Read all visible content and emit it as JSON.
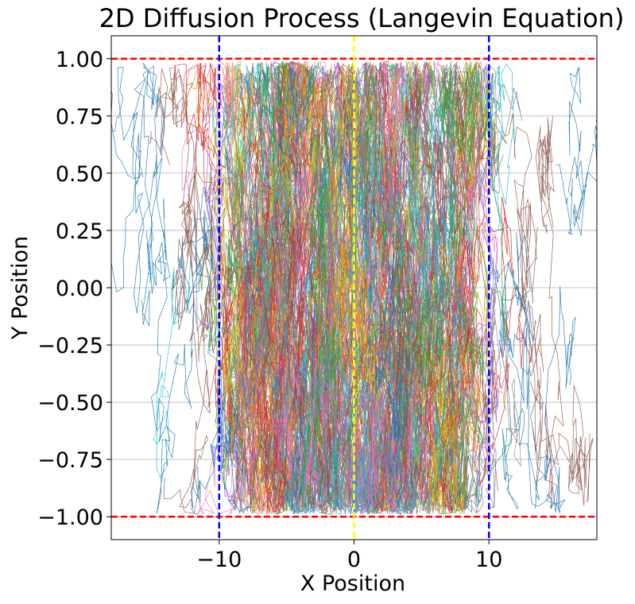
{
  "chart_data": {
    "type": "line",
    "title": "2D Diffusion Process (Langevin Equation)",
    "xlabel": "X Position",
    "ylabel": "Y Position",
    "xlim": [
      -18,
      18
    ],
    "ylim": [
      -1.1,
      1.1
    ],
    "x_ticks": [
      {
        "value": -10,
        "label": "−10"
      },
      {
        "value": 0,
        "label": "0"
      },
      {
        "value": 10,
        "label": "10"
      }
    ],
    "y_ticks": [
      {
        "value": 1.0,
        "label": "1.00"
      },
      {
        "value": 0.75,
        "label": "0.75"
      },
      {
        "value": 0.5,
        "label": "0.50"
      },
      {
        "value": 0.25,
        "label": "0.25"
      },
      {
        "value": 0.0,
        "label": "0.00"
      },
      {
        "value": -0.25,
        "label": "−0.25"
      },
      {
        "value": -0.5,
        "label": "−0.50"
      },
      {
        "value": -0.75,
        "label": "−0.75"
      },
      {
        "value": -1.0,
        "label": "−1.00"
      }
    ],
    "grid": "horizontal",
    "reference_lines": [
      {
        "axis": "y",
        "value": 1.0,
        "color": "#ff0000",
        "style": "dashed"
      },
      {
        "axis": "y",
        "value": -1.0,
        "color": "#ff0000",
        "style": "dashed"
      },
      {
        "axis": "x",
        "value": -10,
        "color": "#0000ff",
        "style": "dashed"
      },
      {
        "axis": "x",
        "value": 10,
        "color": "#0000ff",
        "style": "dashed"
      },
      {
        "axis": "x",
        "value": 0,
        "color": "#ffff00",
        "style": "dashed"
      }
    ],
    "series_colors": [
      "#1f77b4",
      "#ff7f0e",
      "#2ca02c",
      "#d62728",
      "#9467bd",
      "#8c564b",
      "#e377c2",
      "#7f7f7f",
      "#bcbd22",
      "#17becf"
    ],
    "trajectory_count": 400,
    "x_spread_core": [
      -10,
      10
    ],
    "x_extent": [
      -16,
      16.5
    ]
  }
}
